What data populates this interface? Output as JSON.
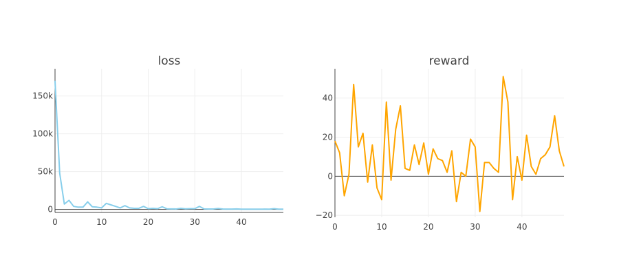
{
  "chart_data": [
    {
      "type": "line",
      "title": "loss",
      "xlabel": "",
      "ylabel": "",
      "xlim": [
        0,
        49
      ],
      "ylim": [
        -4000,
        186000
      ],
      "x_ticks": [
        0,
        10,
        20,
        30,
        40
      ],
      "y_ticks": [
        0,
        50000,
        100000,
        150000
      ],
      "y_tick_labels": [
        "0",
        "50k",
        "100k",
        "150k"
      ],
      "grid": true,
      "color": "#87ceeb",
      "x": [
        0,
        1,
        2,
        3,
        4,
        5,
        6,
        7,
        8,
        9,
        10,
        11,
        12,
        13,
        14,
        15,
        16,
        17,
        18,
        19,
        20,
        21,
        22,
        23,
        24,
        25,
        26,
        27,
        28,
        29,
        30,
        31,
        32,
        33,
        34,
        35,
        36,
        37,
        38,
        39,
        40,
        41,
        42,
        43,
        44,
        45,
        46,
        47,
        48,
        49
      ],
      "values": [
        170000,
        48000,
        7000,
        12000,
        4000,
        3000,
        3000,
        10000,
        3500,
        3000,
        2000,
        8000,
        6000,
        4000,
        2000,
        5000,
        2000,
        1500,
        1500,
        4000,
        1000,
        1500,
        1000,
        3500,
        800,
        700,
        600,
        1500,
        800,
        1000,
        1000,
        4000,
        700,
        500,
        600,
        1200,
        500,
        400,
        400,
        700,
        300,
        300,
        300,
        300,
        300,
        400,
        300,
        1000,
        300,
        300
      ]
    },
    {
      "type": "line",
      "title": "reward",
      "xlabel": "",
      "ylabel": "",
      "xlim": [
        0,
        49
      ],
      "ylim": [
        -21,
        55
      ],
      "x_ticks": [
        0,
        10,
        20,
        30,
        40
      ],
      "y_ticks": [
        -20,
        0,
        20,
        40
      ],
      "y_tick_labels": [
        "−20",
        "0",
        "20",
        "40"
      ],
      "grid": true,
      "color": "#ffa500",
      "x": [
        0,
        1,
        2,
        3,
        4,
        5,
        6,
        7,
        8,
        9,
        10,
        11,
        12,
        13,
        14,
        15,
        16,
        17,
        18,
        19,
        20,
        21,
        22,
        23,
        24,
        25,
        26,
        27,
        28,
        29,
        30,
        31,
        32,
        33,
        34,
        35,
        36,
        37,
        38,
        39,
        40,
        41,
        42,
        43,
        44,
        45,
        46,
        47,
        48,
        49
      ],
      "values": [
        18,
        12,
        -10,
        1,
        47,
        15,
        22,
        -3,
        16,
        -6,
        -12,
        38,
        -2,
        24,
        36,
        4,
        3,
        16,
        6,
        17,
        1,
        14,
        9,
        8,
        2,
        13,
        -13,
        2,
        0,
        19,
        15,
        -18,
        7,
        7,
        4,
        2,
        51,
        38,
        -12,
        10,
        -2,
        21,
        5,
        1,
        9,
        11,
        15,
        31,
        13,
        5
      ]
    }
  ]
}
